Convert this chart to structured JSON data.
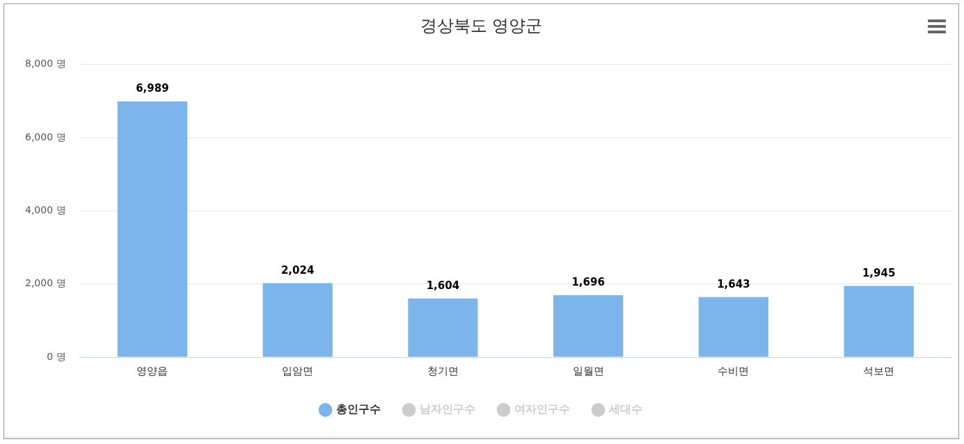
{
  "chart_data": {
    "type": "bar",
    "title": "경상북도 영양군",
    "categories": [
      "영양읍",
      "입암면",
      "청기면",
      "일월면",
      "수비면",
      "석보면"
    ],
    "series": [
      {
        "name": "총인구수",
        "color": "#7cb5ec",
        "values": [
          6989,
          2024,
          1604,
          1696,
          1643,
          1945
        ],
        "value_labels": [
          "6,989",
          "2,024",
          "1,604",
          "1,696",
          "1,643",
          "1,945"
        ]
      },
      {
        "name": "남자인구수",
        "color": "#cccccc",
        "values": [
          null,
          null,
          null,
          null,
          null,
          null
        ]
      },
      {
        "name": "여자인구수",
        "color": "#cccccc",
        "values": [
          null,
          null,
          null,
          null,
          null,
          null
        ]
      },
      {
        "name": "세대수",
        "color": "#cccccc",
        "values": [
          null,
          null,
          null,
          null,
          null,
          null
        ]
      }
    ],
    "ylim": [
      0,
      8000
    ],
    "yticks": [
      {
        "value": 0,
        "label": "0 명"
      },
      {
        "value": 2000,
        "label": "2,000 명"
      },
      {
        "value": 4000,
        "label": "4,000 명"
      },
      {
        "value": 6000,
        "label": "6,000 명"
      },
      {
        "value": 8000,
        "label": "8,000 명"
      }
    ],
    "grid": "y",
    "legend": "bottom"
  }
}
